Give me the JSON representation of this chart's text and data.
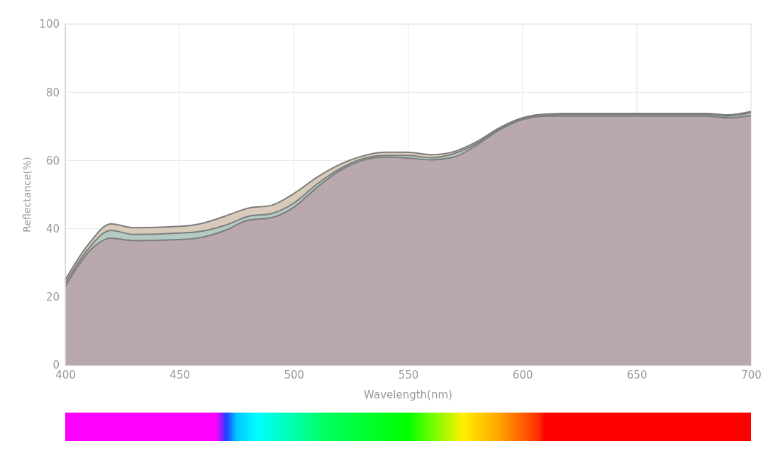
{
  "chart_data": {
    "type": "area",
    "xlabel": "Wavelength(nm)",
    "ylabel": "Reflectance(%)",
    "x": [
      400,
      410,
      420,
      430,
      450,
      460,
      470,
      480,
      490,
      500,
      510,
      520,
      530,
      540,
      550,
      560,
      570,
      580,
      590,
      600,
      610,
      620,
      650,
      680,
      690,
      700
    ],
    "series": [
      {
        "color": "#d9cbbb",
        "values": [
          25,
          35.3,
          41.4,
          40.3,
          40.7,
          41.6,
          43.7,
          46,
          46.8,
          50.3,
          55,
          58.8,
          61.3,
          62.4,
          62.4,
          61.7,
          62.6,
          65.5,
          69.6,
          72.5,
          73.6,
          73.8,
          73.8,
          73.8,
          73.4,
          74.4
        ]
      },
      {
        "color": "#b3cbc2",
        "values": [
          24,
          34,
          39.5,
          38.3,
          38.7,
          39.3,
          41,
          43.6,
          44.4,
          47.5,
          53,
          57.5,
          60.5,
          61.5,
          61.5,
          60.8,
          62,
          65,
          69.3,
          72.3,
          73.3,
          73.5,
          73.5,
          73.5,
          73,
          74
        ]
      },
      {
        "color": "#b9a9ad",
        "values": [
          23,
          33,
          37.2,
          36.5,
          36.8,
          37.5,
          39.5,
          42.5,
          43.2,
          46.3,
          52,
          57,
          60,
          61,
          60.7,
          60.2,
          61,
          64.5,
          69,
          72,
          73,
          73,
          73,
          73,
          72.5,
          73.2
        ]
      }
    ],
    "xlim": [
      400,
      700
    ],
    "xticks": [
      400,
      450,
      500,
      550,
      600,
      650,
      700
    ],
    "ylim": [
      0,
      100
    ],
    "yticks": [
      0,
      20,
      40,
      60,
      80,
      100
    ],
    "grid": true
  }
}
